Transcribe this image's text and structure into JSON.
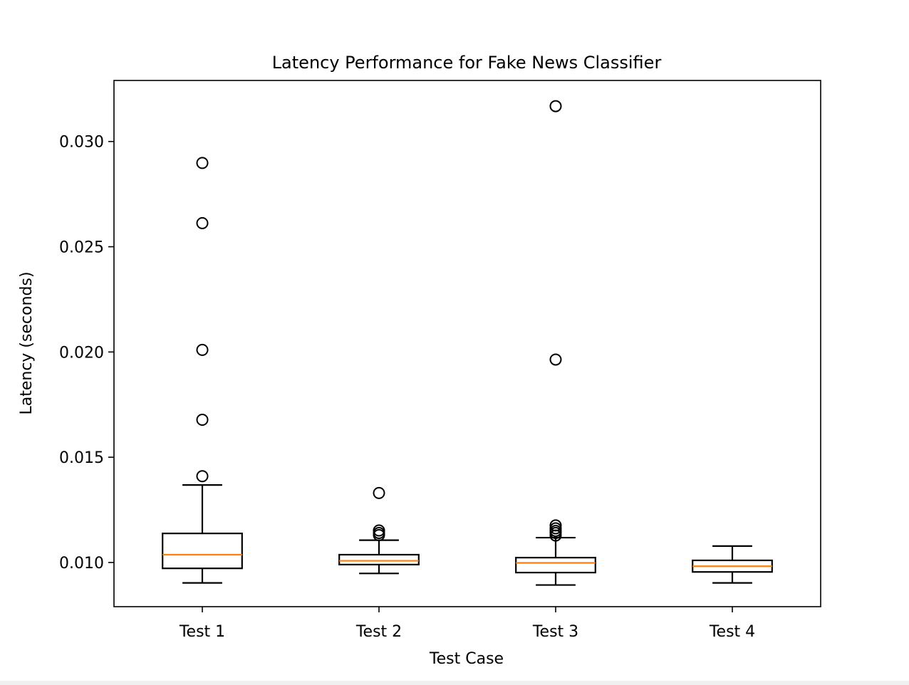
{
  "chart_data": {
    "type": "boxplot",
    "title": "Latency Performance for Fake News Classifier",
    "xlabel": "Test Case",
    "ylabel": "Latency (seconds)",
    "ylim": [
      0.0079,
      0.0329
    ],
    "yticks": [
      0.01,
      0.015,
      0.02,
      0.025,
      0.03
    ],
    "ytick_labels": [
      "0.010",
      "0.015",
      "0.020",
      "0.025",
      "0.030"
    ],
    "grid": false,
    "categories": [
      "Test 1",
      "Test 2",
      "Test 3",
      "Test 4"
    ],
    "boxes": [
      {
        "category": "Test 1",
        "whisker_low": 0.00903,
        "q1": 0.00972,
        "median": 0.01037,
        "q3": 0.01138,
        "whisker_high": 0.01368,
        "outliers": [
          0.0141,
          0.01678,
          0.0201,
          0.02612,
          0.02898
        ]
      },
      {
        "category": "Test 2",
        "whisker_low": 0.00948,
        "q1": 0.0099,
        "median": 0.01008,
        "q3": 0.01037,
        "whisker_high": 0.01106,
        "outliers": [
          0.0113,
          0.0114,
          0.01152,
          0.0133
        ]
      },
      {
        "category": "Test 3",
        "whisker_low": 0.00893,
        "q1": 0.00952,
        "median": 0.00998,
        "q3": 0.01023,
        "whisker_high": 0.01118,
        "outliers": [
          0.01128,
          0.0114,
          0.0115,
          0.01162,
          0.01176,
          0.01964,
          0.03168
        ]
      },
      {
        "category": "Test 4",
        "whisker_low": 0.00903,
        "q1": 0.00955,
        "median": 0.00982,
        "q3": 0.0101,
        "whisker_high": 0.01078,
        "outliers": []
      }
    ],
    "colors": {
      "box": "#000000",
      "median": "#ff7f0e",
      "outlier_edge": "#000000"
    }
  }
}
